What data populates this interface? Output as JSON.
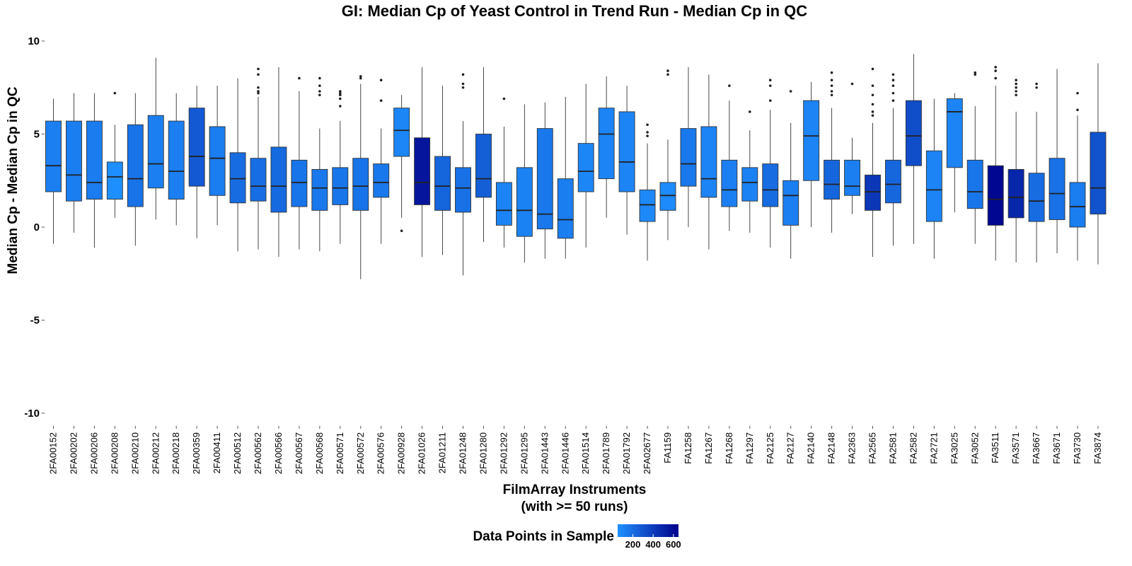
{
  "chart_data": {
    "type": "box",
    "title": "GI: Median Cp of Yeast Control in Trend Run - Median Cp in QC",
    "xlabel": "FilmArray Instruments",
    "xlabel2": "(with >= 50 runs)",
    "ylabel": "Median Cp - Median Cp in QC",
    "ylim": [
      -10.5,
      10.2
    ],
    "yticks": [
      "-10",
      "-5",
      "0",
      "5",
      "10"
    ],
    "grid": false,
    "legend": {
      "title": "Data Points in Sample",
      "position": "bottom",
      "ticks": [
        "200",
        "400",
        "600"
      ],
      "color_low": "#1e90ff",
      "color_high": "#00008b",
      "range": [
        50,
        650
      ]
    },
    "series": [
      {
        "name": "2FA00152",
        "lower": -0.9,
        "q1": 1.9,
        "median": 3.3,
        "q3": 5.7,
        "upper": 6.9,
        "outliers": [],
        "n": 120
      },
      {
        "name": "2FA00202",
        "lower": -0.3,
        "q1": 1.4,
        "median": 2.8,
        "q3": 5.7,
        "upper": 7.2,
        "outliers": [],
        "n": 125
      },
      {
        "name": "2FA00206",
        "lower": -1.1,
        "q1": 1.5,
        "median": 2.4,
        "q3": 5.7,
        "upper": 7.2,
        "outliers": [],
        "n": 135
      },
      {
        "name": "2FA00208",
        "lower": 0.5,
        "q1": 1.5,
        "median": 2.7,
        "q3": 3.5,
        "upper": 5.5,
        "outliers": [
          7.2
        ],
        "n": 55
      },
      {
        "name": "2FA00210",
        "lower": -1.0,
        "q1": 1.1,
        "median": 2.6,
        "q3": 5.5,
        "upper": 7.2,
        "outliers": [],
        "n": 170
      },
      {
        "name": "2FA00212",
        "lower": 0.4,
        "q1": 2.1,
        "median": 3.4,
        "q3": 6.0,
        "upper": 9.1,
        "outliers": [],
        "n": 120
      },
      {
        "name": "2FA00218",
        "lower": 0.1,
        "q1": 1.5,
        "median": 3.0,
        "q3": 5.7,
        "upper": 7.2,
        "outliers": [],
        "n": 120
      },
      {
        "name": "2FA00359",
        "lower": -0.6,
        "q1": 2.2,
        "median": 3.8,
        "q3": 6.4,
        "upper": 7.6,
        "outliers": [],
        "n": 280
      },
      {
        "name": "2FA00411",
        "lower": 0.1,
        "q1": 1.7,
        "median": 3.7,
        "q3": 5.4,
        "upper": 7.6,
        "outliers": [],
        "n": 130
      },
      {
        "name": "2FA00512",
        "lower": -1.3,
        "q1": 1.3,
        "median": 2.6,
        "q3": 4.0,
        "upper": 8.0,
        "outliers": [],
        "n": 200
      },
      {
        "name": "2FA00562",
        "lower": -1.2,
        "q1": 1.4,
        "median": 2.2,
        "q3": 3.7,
        "upper": 7.0,
        "outliers": [
          7.2,
          7.3,
          7.5,
          8.2,
          8.5
        ],
        "n": 190
      },
      {
        "name": "2FA00566",
        "lower": -1.6,
        "q1": 0.8,
        "median": 2.2,
        "q3": 4.3,
        "upper": 8.6,
        "outliers": [],
        "n": 210
      },
      {
        "name": "2FA00567",
        "lower": -1.2,
        "q1": 1.1,
        "median": 2.4,
        "q3": 3.6,
        "upper": 7.3,
        "outliers": [
          8.0
        ],
        "n": 165
      },
      {
        "name": "2FA00568",
        "lower": -1.3,
        "q1": 0.9,
        "median": 2.1,
        "q3": 3.1,
        "upper": 5.3,
        "outliers": [
          7.1,
          7.3,
          7.6,
          8.0
        ],
        "n": 150
      },
      {
        "name": "2FA00571",
        "lower": -0.9,
        "q1": 1.2,
        "median": 2.1,
        "q3": 3.2,
        "upper": 5.7,
        "outliers": [
          6.5,
          6.9,
          7.1,
          7.2,
          7.3
        ],
        "n": 160
      },
      {
        "name": "2FA00572",
        "lower": -2.8,
        "q1": 0.9,
        "median": 2.2,
        "q3": 3.7,
        "upper": 7.7,
        "outliers": [
          8.0,
          8.1
        ],
        "n": 170
      },
      {
        "name": "2FA00576",
        "lower": -0.9,
        "q1": 1.6,
        "median": 2.4,
        "q3": 3.4,
        "upper": 5.3,
        "outliers": [
          6.8,
          7.9
        ],
        "n": 150
      },
      {
        "name": "2FA00928",
        "lower": 0.5,
        "q1": 3.8,
        "median": 5.2,
        "q3": 6.4,
        "upper": 7.1,
        "outliers": [
          -0.2
        ],
        "n": 90
      },
      {
        "name": "2FA01026",
        "lower": -1.6,
        "q1": 1.2,
        "median": 2.4,
        "q3": 4.8,
        "upper": 8.6,
        "outliers": [],
        "n": 560
      },
      {
        "name": "2FA01211",
        "lower": -1.5,
        "q1": 0.9,
        "median": 2.2,
        "q3": 3.8,
        "upper": 7.6,
        "outliers": [],
        "n": 230
      },
      {
        "name": "2FA01248",
        "lower": -2.6,
        "q1": 0.8,
        "median": 2.1,
        "q3": 3.2,
        "upper": 5.7,
        "outliers": [
          7.5,
          7.7,
          8.2
        ],
        "n": 180
      },
      {
        "name": "2FA01280",
        "lower": -0.8,
        "q1": 1.6,
        "median": 2.6,
        "q3": 5.0,
        "upper": 8.6,
        "outliers": [],
        "n": 260
      },
      {
        "name": "2FA01292",
        "lower": -1.1,
        "q1": 0.1,
        "median": 0.9,
        "q3": 2.4,
        "upper": 5.4,
        "outliers": [
          6.9
        ],
        "n": 100
      },
      {
        "name": "2FA01295",
        "lower": -1.9,
        "q1": -0.5,
        "median": 0.9,
        "q3": 3.2,
        "upper": 6.6,
        "outliers": [],
        "n": 110
      },
      {
        "name": "2FA01443",
        "lower": -1.7,
        "q1": -0.1,
        "median": 0.7,
        "q3": 5.3,
        "upper": 6.7,
        "outliers": [],
        "n": 150
      },
      {
        "name": "2FA01446",
        "lower": -1.7,
        "q1": -0.6,
        "median": 0.4,
        "q3": 2.6,
        "upper": 7.0,
        "outliers": [],
        "n": 130
      },
      {
        "name": "2FA01514",
        "lower": -1.1,
        "q1": 1.9,
        "median": 3.0,
        "q3": 4.5,
        "upper": 7.7,
        "outliers": [],
        "n": 90
      },
      {
        "name": "2FA01789",
        "lower": 0.5,
        "q1": 2.6,
        "median": 5.0,
        "q3": 6.4,
        "upper": 8.1,
        "outliers": [],
        "n": 100
      },
      {
        "name": "2FA01792",
        "lower": -0.4,
        "q1": 1.9,
        "median": 3.5,
        "q3": 6.2,
        "upper": 7.6,
        "outliers": [],
        "n": 100
      },
      {
        "name": "2FA02677",
        "lower": -1.8,
        "q1": 0.3,
        "median": 1.2,
        "q3": 2.0,
        "upper": 4.5,
        "outliers": [
          4.9,
          5.1,
          5.5
        ],
        "n": 80
      },
      {
        "name": "FA1159",
        "lower": -0.7,
        "q1": 0.9,
        "median": 1.7,
        "q3": 2.4,
        "upper": 4.7,
        "outliers": [
          8.2,
          8.4
        ],
        "n": 70
      },
      {
        "name": "FA1258",
        "lower": 0.0,
        "q1": 2.2,
        "median": 3.4,
        "q3": 5.3,
        "upper": 8.6,
        "outliers": [],
        "n": 150
      },
      {
        "name": "FA1267",
        "lower": -1.2,
        "q1": 1.6,
        "median": 2.6,
        "q3": 5.4,
        "upper": 8.2,
        "outliers": [],
        "n": 100
      },
      {
        "name": "FA1268",
        "lower": -0.2,
        "q1": 1.1,
        "median": 2.0,
        "q3": 3.6,
        "upper": 6.8,
        "outliers": [
          7.6
        ],
        "n": 120
      },
      {
        "name": "FA1297",
        "lower": -0.3,
        "q1": 1.4,
        "median": 2.4,
        "q3": 3.2,
        "upper": 5.2,
        "outliers": [
          6.2
        ],
        "n": 110
      },
      {
        "name": "FA2125",
        "lower": -1.1,
        "q1": 1.1,
        "median": 2.0,
        "q3": 3.4,
        "upper": 6.3,
        "outliers": [
          6.8,
          7.6,
          7.9
        ],
        "n": 200
      },
      {
        "name": "FA2127",
        "lower": -1.7,
        "q1": 0.1,
        "median": 1.7,
        "q3": 2.5,
        "upper": 5.6,
        "outliers": [
          7.3
        ],
        "n": 120
      },
      {
        "name": "FA2140",
        "lower": 0.0,
        "q1": 2.5,
        "median": 4.9,
        "q3": 6.8,
        "upper": 7.8,
        "outliers": [],
        "n": 100
      },
      {
        "name": "FA2148",
        "lower": -0.3,
        "q1": 1.5,
        "median": 2.3,
        "q3": 3.6,
        "upper": 6.4,
        "outliers": [
          7.1,
          7.3,
          7.6,
          7.9,
          8.3
        ],
        "n": 230
      },
      {
        "name": "FA2363",
        "lower": 0.7,
        "q1": 1.7,
        "median": 2.2,
        "q3": 3.6,
        "upper": 4.8,
        "outliers": [
          7.7
        ],
        "n": 120
      },
      {
        "name": "FA2565",
        "lower": -1.6,
        "q1": 0.9,
        "median": 1.9,
        "q3": 2.8,
        "upper": 5.6,
        "outliers": [
          6.0,
          6.2,
          6.6,
          7.1,
          7.6,
          8.5
        ],
        "n": 420
      },
      {
        "name": "FA2581",
        "lower": -1.0,
        "q1": 1.3,
        "median": 2.3,
        "q3": 3.6,
        "upper": 6.4,
        "outliers": [
          6.8,
          7.2,
          7.6,
          7.9,
          8.2
        ],
        "n": 220
      },
      {
        "name": "FA2582",
        "lower": -0.9,
        "q1": 3.3,
        "median": 4.9,
        "q3": 6.8,
        "upper": 9.3,
        "outliers": [],
        "n": 330
      },
      {
        "name": "FA2721",
        "lower": -1.7,
        "q1": 0.3,
        "median": 2.0,
        "q3": 4.1,
        "upper": 6.9,
        "outliers": [],
        "n": 100
      },
      {
        "name": "FA3025",
        "lower": 0.8,
        "q1": 3.2,
        "median": 6.2,
        "q3": 6.9,
        "upper": 7.2,
        "outliers": [],
        "n": 100
      },
      {
        "name": "FA3052",
        "lower": -0.9,
        "q1": 1.0,
        "median": 1.9,
        "q3": 3.6,
        "upper": 6.5,
        "outliers": [
          8.2,
          8.3
        ],
        "n": 160
      },
      {
        "name": "FA3511",
        "lower": -1.8,
        "q1": 0.1,
        "median": 1.5,
        "q3": 3.3,
        "upper": 7.6,
        "outliers": [
          8.0,
          8.4,
          8.6
        ],
        "n": 620
      },
      {
        "name": "FA3571",
        "lower": -1.9,
        "q1": 0.5,
        "median": 1.6,
        "q3": 3.1,
        "upper": 6.2,
        "outliers": [
          7.1,
          7.3,
          7.5,
          7.7,
          7.9
        ],
        "n": 490
      },
      {
        "name": "FA3667",
        "lower": -1.9,
        "q1": 0.3,
        "median": 1.4,
        "q3": 2.9,
        "upper": 6.2,
        "outliers": [
          7.5,
          7.7
        ],
        "n": 200
      },
      {
        "name": "FA3671",
        "lower": -1.4,
        "q1": 0.4,
        "median": 1.8,
        "q3": 3.7,
        "upper": 8.5,
        "outliers": [],
        "n": 180
      },
      {
        "name": "FA3730",
        "lower": -1.8,
        "q1": 0.0,
        "median": 1.1,
        "q3": 2.4,
        "upper": 6.0,
        "outliers": [
          6.3,
          7.2
        ],
        "n": 130
      },
      {
        "name": "FA3874",
        "lower": -2.0,
        "q1": 0.7,
        "median": 2.1,
        "q3": 5.1,
        "upper": 8.8,
        "outliers": [],
        "n": 310
      }
    ]
  }
}
